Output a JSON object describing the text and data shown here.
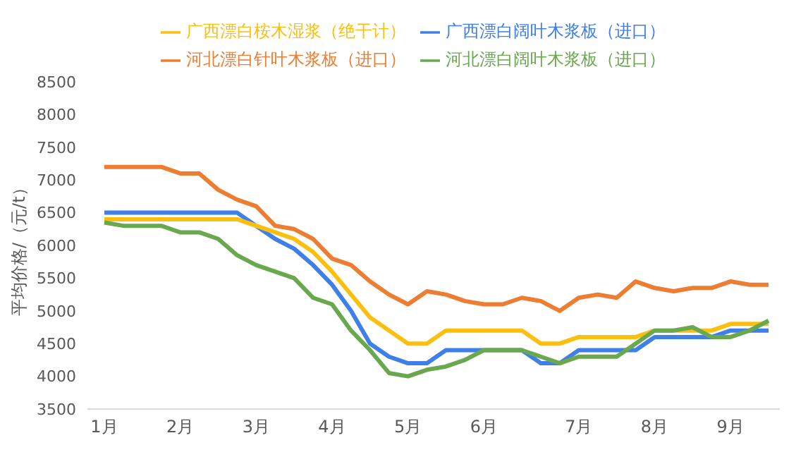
{
  "chart_data": {
    "type": "line",
    "ylabel": "平均价格/（元/t）",
    "categories": [
      "1月",
      null,
      null,
      null,
      "2月",
      null,
      null,
      null,
      "3月",
      null,
      null,
      null,
      "4月",
      null,
      null,
      null,
      "5月",
      null,
      null,
      null,
      "6月",
      null,
      null,
      null,
      null,
      "7月",
      null,
      null,
      null,
      "8月",
      null,
      null,
      null,
      "9月",
      null,
      null
    ],
    "ylim": [
      3500,
      8500
    ],
    "yticks": [
      3500,
      4000,
      4500,
      5000,
      5500,
      6000,
      6500,
      7000,
      7500,
      8000,
      8500
    ],
    "grid": false,
    "legend": "top",
    "marker": "none",
    "line_style": "solid",
    "series": [
      {
        "name": "广西漂白阔叶木浆板（进口）",
        "color": "#3f7fe8",
        "values": [
          6500,
          6500,
          6500,
          6500,
          6500,
          6500,
          6500,
          6500,
          6300,
          6100,
          5950,
          5700,
          5400,
          5000,
          4500,
          4300,
          4200,
          4200,
          4400,
          4400,
          4400,
          4400,
          4400,
          4200,
          4200,
          4400,
          4400,
          4400,
          4400,
          4600,
          4600,
          4600,
          4600,
          4700,
          4700,
          4700
        ]
      },
      {
        "name": "广西漂白桉木湿浆（绝干计）",
        "color": "#fbbf0f",
        "values": [
          6400,
          6400,
          6400,
          6400,
          6400,
          6400,
          6400,
          6400,
          6300,
          6200,
          6100,
          5900,
          5600,
          5250,
          4900,
          4700,
          4500,
          4500,
          4700,
          4700,
          4700,
          4700,
          4700,
          4500,
          4500,
          4600,
          4600,
          4600,
          4600,
          4700,
          4700,
          4700,
          4700,
          4800,
          4800,
          4800
        ]
      },
      {
        "name": "河北漂白阔叶木浆板（进口）",
        "color": "#6aa84f",
        "values": [
          6350,
          6300,
          6300,
          6300,
          6200,
          6200,
          6100,
          5850,
          5700,
          5600,
          5500,
          5200,
          5100,
          4700,
          4400,
          4050,
          4000,
          4100,
          4150,
          4250,
          4400,
          4400,
          4400,
          4300,
          4200,
          4300,
          4300,
          4300,
          4500,
          4700,
          4700,
          4750,
          4600,
          4600,
          4700,
          4850
        ]
      },
      {
        "name": "河北漂白针叶木浆板（进口）",
        "color": "#ed7d31",
        "values": [
          7200,
          7200,
          7200,
          7200,
          7100,
          7100,
          6850,
          6700,
          6600,
          6300,
          6250,
          6100,
          5800,
          5700,
          5450,
          5250,
          5100,
          5300,
          5250,
          5150,
          5100,
          5100,
          5200,
          5150,
          5000,
          5200,
          5250,
          5200,
          5450,
          5350,
          5300,
          5350,
          5350,
          5450,
          5400,
          5400
        ]
      }
    ]
  }
}
